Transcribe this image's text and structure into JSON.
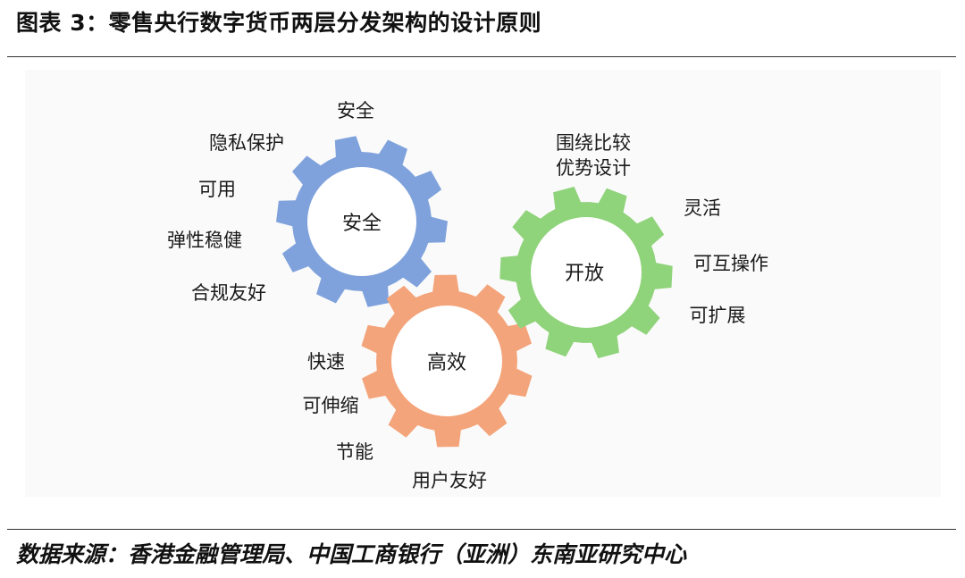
{
  "title": "图表 3：零售央行数字货币两层分发架构的设计原则",
  "source": "数据来源：香港金融管理局、中国工商银行（亚洲）东南亚研究中心",
  "colors": {
    "blue_gear": "#7fa2dc",
    "green_gear": "#8fd37a",
    "orange_gear": "#f4a47a"
  },
  "gears": {
    "security": {
      "center_label": "安全",
      "items": [
        "安全",
        "隐私保护",
        "可用",
        "弹性稳健",
        "合规友好"
      ]
    },
    "open": {
      "center_label": "开放",
      "items": [
        "围绕比较",
        "优势设计",
        "灵活",
        "可互操作",
        "可扩展"
      ]
    },
    "efficient": {
      "center_label": "高效",
      "items": [
        "快速",
        "可伸缩",
        "节能",
        "用户友好"
      ]
    }
  }
}
